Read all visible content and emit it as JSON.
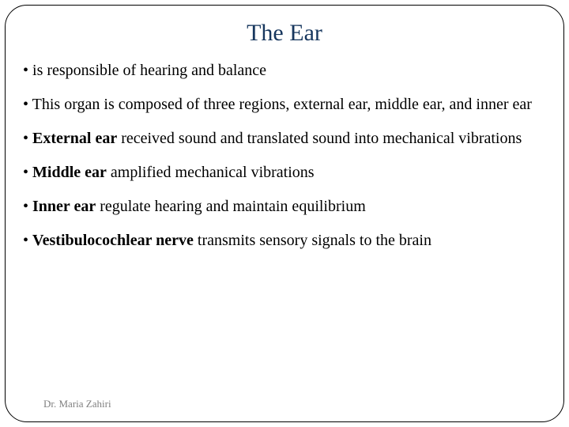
{
  "title": "The Ear",
  "title_color": "#17375e",
  "title_fontsize": 30,
  "body_fontsize": 20,
  "body_color": "#000000",
  "border_color": "#000000",
  "border_radius": 28,
  "background_color": "#ffffff",
  "footer_text": "Dr. Maria Zahiri",
  "footer_color": "#7f7f7f",
  "footer_fontsize": 13,
  "bullets": {
    "b1": {
      "text": "is responsible of hearing and balance"
    },
    "b2": {
      "text": "This organ is composed of three regions, external ear, middle ear, and inner ear"
    },
    "b3": {
      "bold": "External ear",
      "rest": " received sound and translated sound into mechanical vibrations"
    },
    "b4": {
      "bold": "Middle ear",
      "rest": " amplified mechanical vibrations"
    },
    "b5": {
      "bold": "Inner ear",
      "rest": " regulate hearing and maintain equilibrium"
    },
    "b6": {
      "bold": "Vestibulocochlear nerve",
      "rest": " transmits sensory signals to the brain"
    }
  },
  "bullet_marker": "•"
}
